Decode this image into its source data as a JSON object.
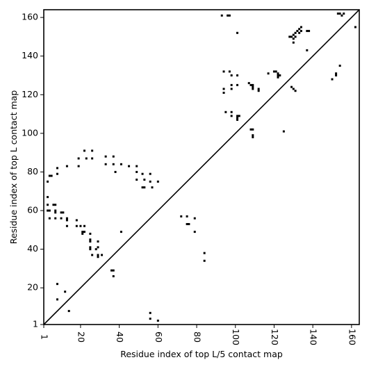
{
  "chart_data": {
    "type": "scatter",
    "title": "",
    "xlabel": "Residue index of top L/5 contact map",
    "ylabel": "Residue index of top L contact map",
    "xlim": [
      1,
      164
    ],
    "ylim": [
      1,
      164
    ],
    "xticks": [
      1,
      20,
      40,
      60,
      80,
      100,
      120,
      140,
      160
    ],
    "yticks": [
      1,
      20,
      40,
      60,
      80,
      100,
      120,
      140,
      160
    ],
    "grid": false,
    "diagonal": true,
    "marker": "square",
    "colors": {
      "points": "#000000",
      "axes": "#000000",
      "background": "#ffffff"
    },
    "series": [
      {
        "name": "",
        "points": [
          [
            26,
            91
          ],
          [
            22,
            91
          ],
          [
            26,
            87
          ],
          [
            23,
            87
          ],
          [
            19,
            87
          ],
          [
            19,
            83
          ],
          [
            13,
            83
          ],
          [
            33,
            88
          ],
          [
            37,
            88
          ],
          [
            33,
            84
          ],
          [
            37,
            84
          ],
          [
            41,
            84
          ],
          [
            45,
            83
          ],
          [
            49,
            83
          ],
          [
            38,
            80
          ],
          [
            49,
            80
          ],
          [
            52,
            79
          ],
          [
            56,
            79
          ],
          [
            49,
            76
          ],
          [
            53,
            76
          ],
          [
            56,
            75
          ],
          [
            60,
            75
          ],
          [
            52,
            72
          ],
          [
            53,
            72
          ],
          [
            57,
            72
          ],
          [
            8,
            82
          ],
          [
            8,
            79
          ],
          [
            4,
            78
          ],
          [
            5,
            78
          ],
          [
            3,
            75
          ],
          [
            3,
            67
          ],
          [
            3,
            63
          ],
          [
            6,
            63
          ],
          [
            7,
            63
          ],
          [
            3,
            60
          ],
          [
            4,
            60
          ],
          [
            7,
            60
          ],
          [
            7,
            59
          ],
          [
            10,
            59
          ],
          [
            11,
            59
          ],
          [
            4,
            56
          ],
          [
            7,
            56
          ],
          [
            10,
            56
          ],
          [
            13,
            56
          ],
          [
            13,
            55
          ],
          [
            18,
            55
          ],
          [
            13,
            52
          ],
          [
            18,
            52
          ],
          [
            20,
            52
          ],
          [
            22,
            52
          ],
          [
            21,
            49
          ],
          [
            22,
            49
          ],
          [
            21,
            48
          ],
          [
            25,
            48
          ],
          [
            25,
            45
          ],
          [
            25,
            44
          ],
          [
            29,
            44
          ],
          [
            25,
            41
          ],
          [
            29,
            41
          ],
          [
            25,
            40
          ],
          [
            28,
            40
          ],
          [
            26,
            37
          ],
          [
            29,
            37
          ],
          [
            29,
            36
          ],
          [
            31,
            37
          ],
          [
            37,
            29
          ],
          [
            36,
            29
          ],
          [
            37,
            26
          ],
          [
            41,
            49
          ],
          [
            8,
            22
          ],
          [
            12,
            18
          ],
          [
            8,
            14
          ],
          [
            14,
            8
          ],
          [
            56,
            7
          ],
          [
            56,
            4
          ],
          [
            60,
            3
          ],
          [
            72,
            57
          ],
          [
            75,
            57
          ],
          [
            79,
            56
          ],
          [
            75,
            53
          ],
          [
            76,
            53
          ],
          [
            79,
            49
          ],
          [
            84,
            38
          ],
          [
            84,
            34
          ],
          [
            93,
            161
          ],
          [
            96,
            161
          ],
          [
            97,
            161
          ],
          [
            101,
            152
          ],
          [
            94,
            132
          ],
          [
            97,
            132
          ],
          [
            98,
            130
          ],
          [
            101,
            130
          ],
          [
            94,
            123
          ],
          [
            94,
            121
          ],
          [
            98,
            125
          ],
          [
            101,
            125
          ],
          [
            98,
            123
          ],
          [
            95,
            111
          ],
          [
            98,
            111
          ],
          [
            98,
            109
          ],
          [
            101,
            109
          ],
          [
            102,
            109
          ],
          [
            101,
            108
          ],
          [
            101,
            107
          ],
          [
            107,
            126
          ],
          [
            108,
            125
          ],
          [
            109,
            125
          ],
          [
            109,
            124
          ],
          [
            109,
            123
          ],
          [
            112,
            123
          ],
          [
            112,
            122
          ],
          [
            108,
            102
          ],
          [
            109,
            102
          ],
          [
            109,
            99
          ],
          [
            109,
            98
          ],
          [
            117,
            131
          ],
          [
            120,
            132
          ],
          [
            121,
            132
          ],
          [
            122,
            131
          ],
          [
            122,
            130
          ],
          [
            123,
            130
          ],
          [
            122,
            129
          ],
          [
            125,
            101
          ],
          [
            129,
            124
          ],
          [
            130,
            123
          ],
          [
            131,
            122
          ],
          [
            128,
            150
          ],
          [
            129,
            150
          ],
          [
            130,
            149
          ],
          [
            130,
            151
          ],
          [
            131,
            152
          ],
          [
            132,
            153
          ],
          [
            133,
            154
          ],
          [
            134,
            155
          ],
          [
            133,
            152
          ],
          [
            134,
            153
          ],
          [
            131,
            150
          ],
          [
            130,
            147
          ],
          [
            137,
            153
          ],
          [
            138,
            153
          ],
          [
            137,
            143
          ],
          [
            150,
            128
          ],
          [
            152,
            131
          ],
          [
            152,
            130
          ],
          [
            154,
            135
          ],
          [
            153,
            162
          ],
          [
            154,
            162
          ],
          [
            155,
            161
          ],
          [
            156,
            162
          ],
          [
            162,
            155
          ]
        ]
      }
    ]
  }
}
